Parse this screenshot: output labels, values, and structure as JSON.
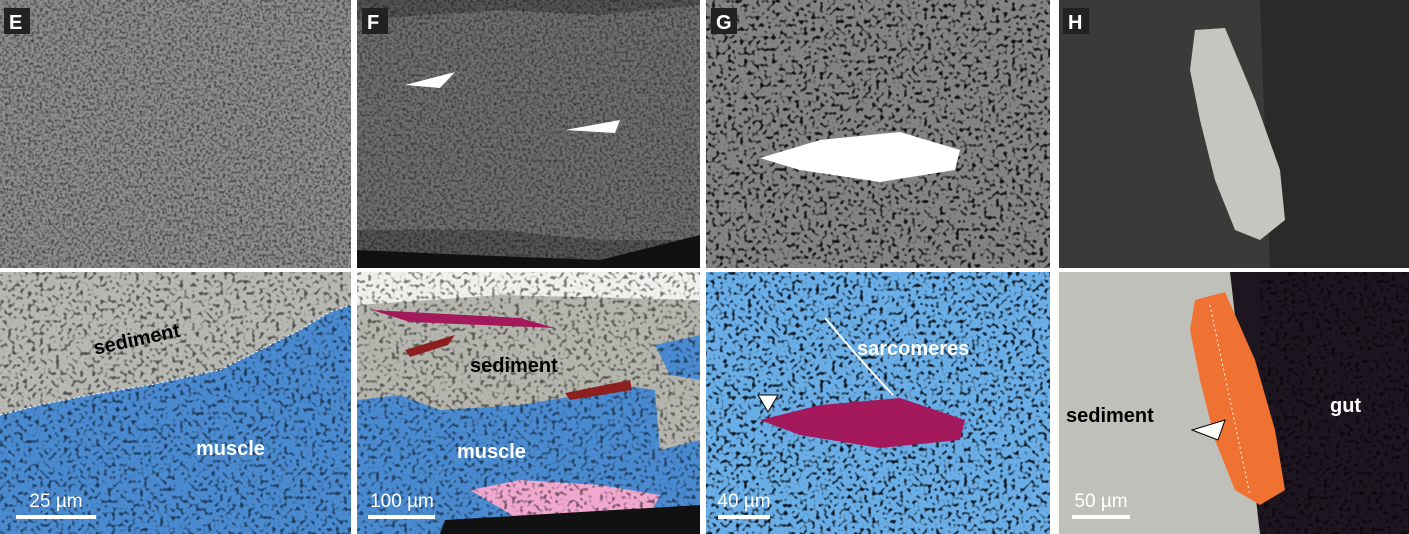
{
  "panels": [
    {
      "letter": "E",
      "labels": [
        "sediment",
        "muscle"
      ],
      "scale_bar": "25 µm"
    },
    {
      "letter": "F",
      "labels": [
        "sediment",
        "muscle"
      ],
      "scale_bar": "100 µm"
    },
    {
      "letter": "G",
      "labels": [
        "sarcomeres"
      ],
      "scale_bar": "40 µm"
    },
    {
      "letter": "H",
      "labels": [
        "sediment",
        "gut"
      ],
      "scale_bar": "50 µm"
    }
  ]
}
